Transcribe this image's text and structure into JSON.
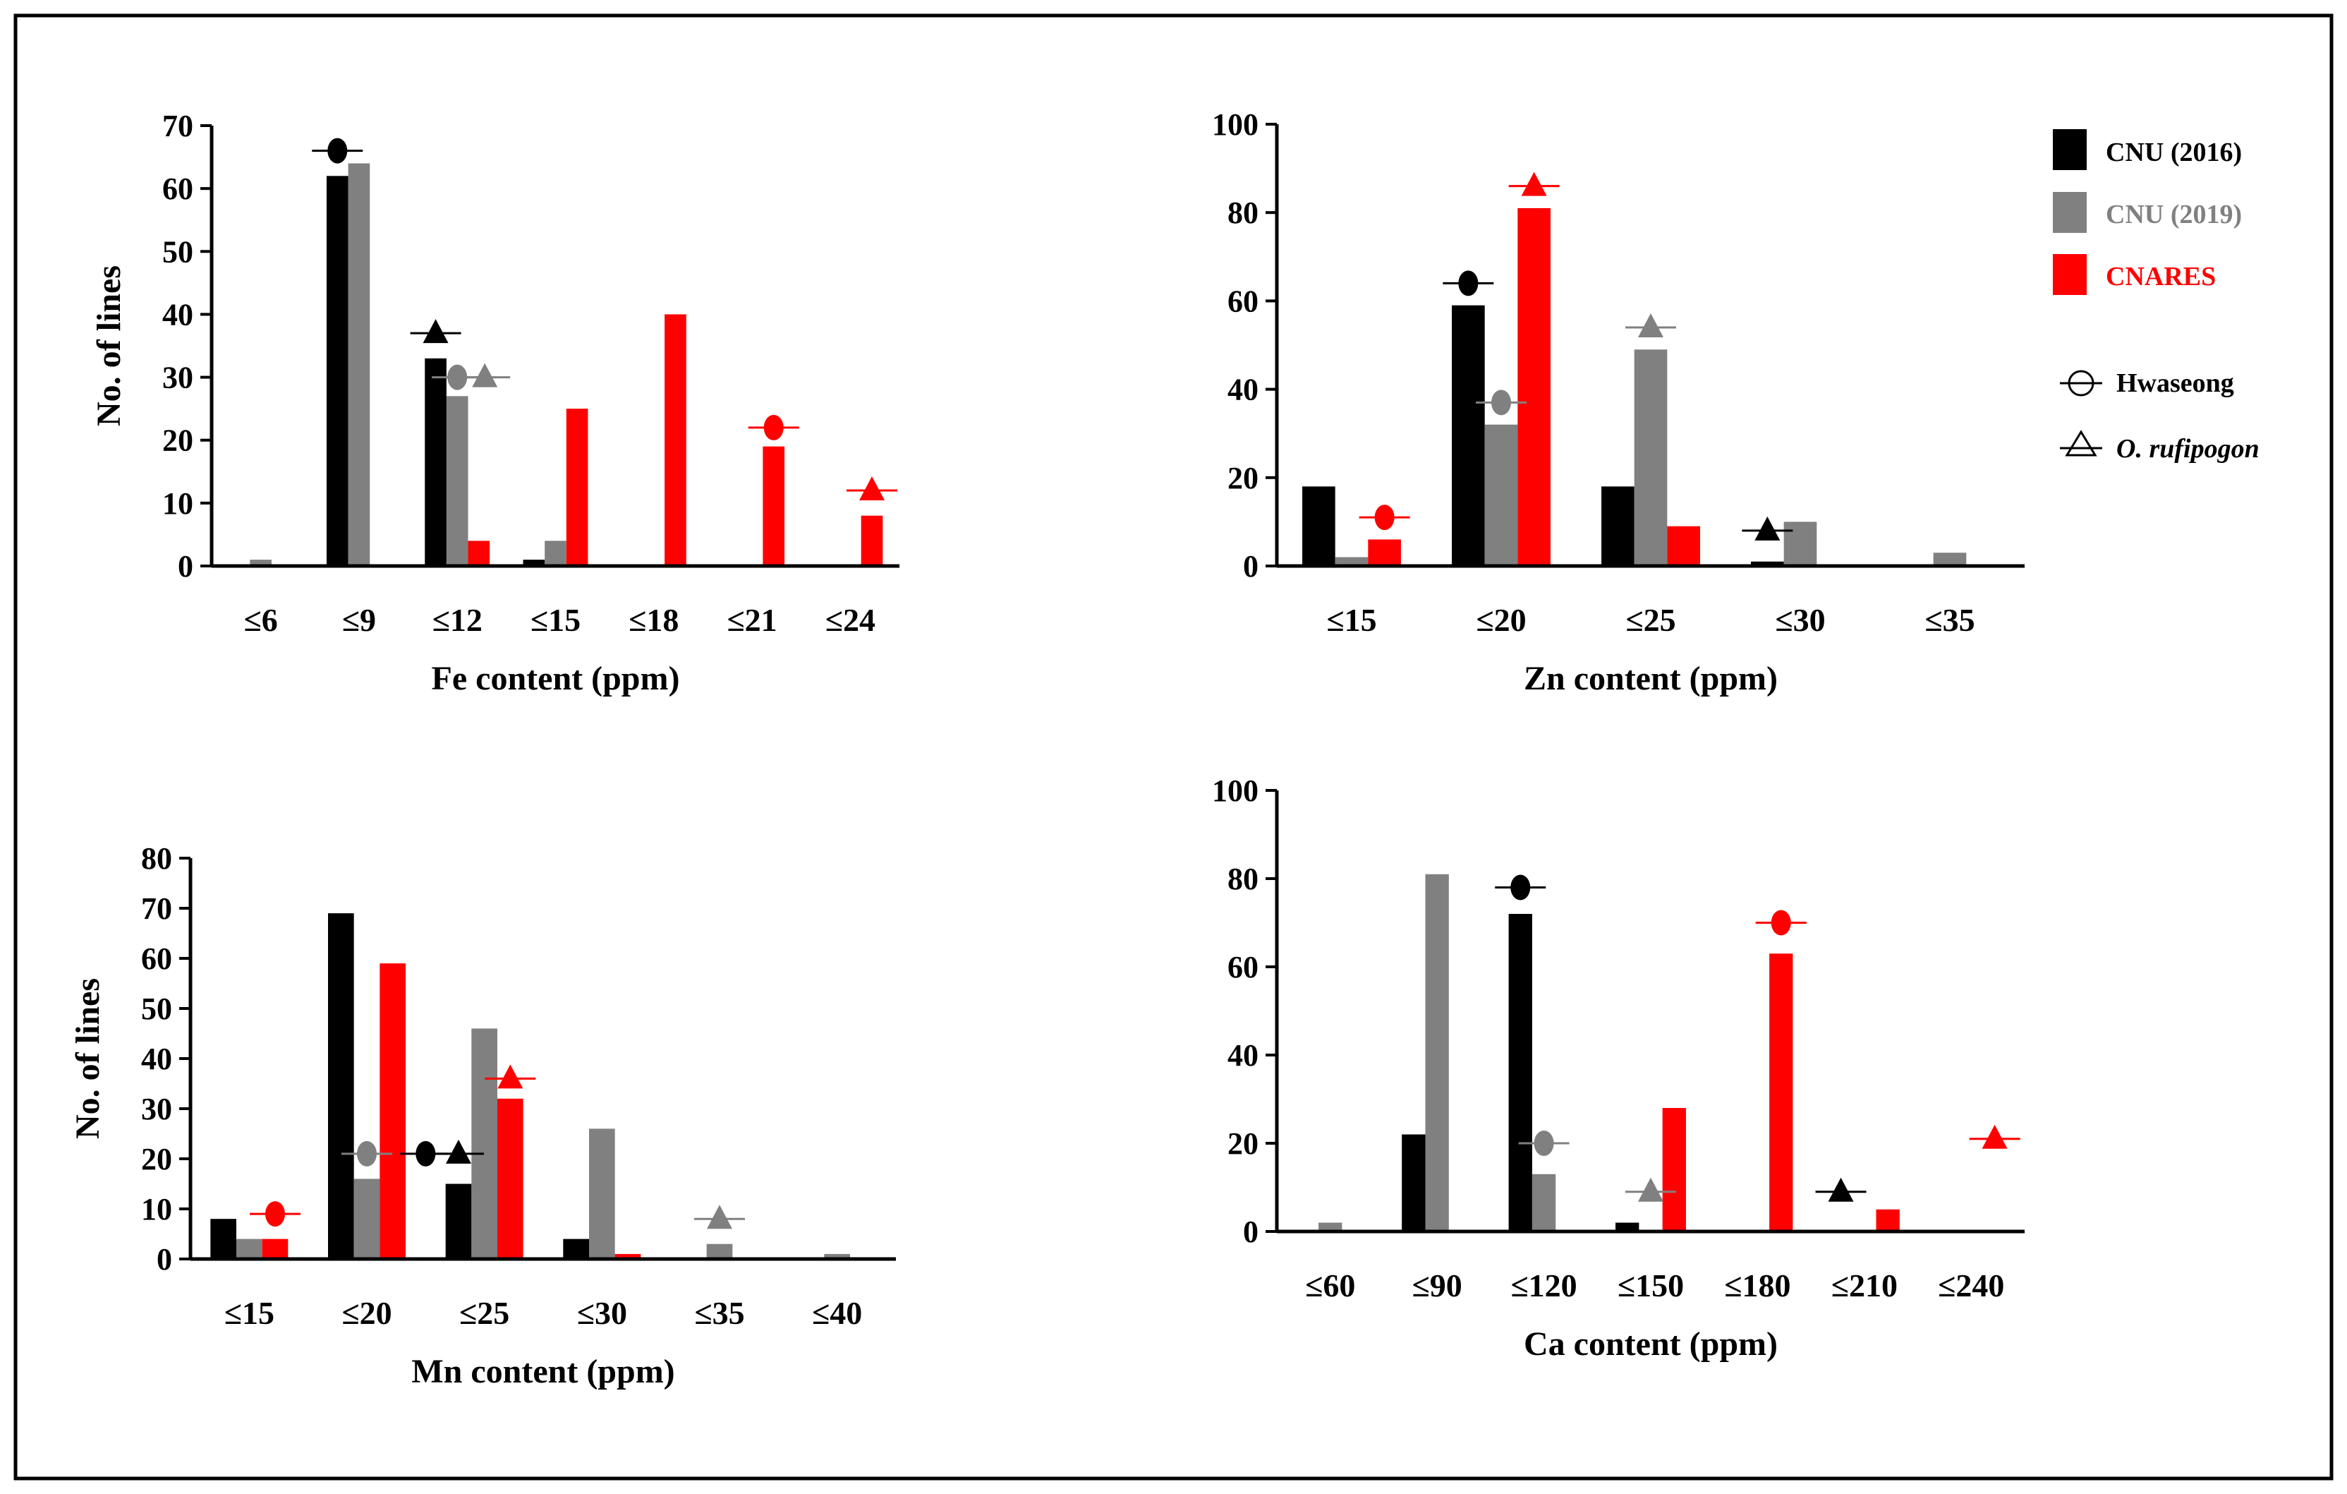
{
  "legend": {
    "series": [
      {
        "label": "CNU (2016)",
        "color": "#000000"
      },
      {
        "label": "CNU (2019)",
        "color": "#808080"
      },
      {
        "label": "CNARES",
        "color": "#ff0000"
      }
    ],
    "markers": [
      {
        "label": "Hwaseong",
        "shape": "circle"
      },
      {
        "label": "O. rufipogon",
        "shape": "triangle"
      }
    ]
  },
  "colors": {
    "CNU (2016)": "#000000",
    "CNU (2019)": "#808080",
    "CNARES": "#ff0000",
    "tick": "#1f77b4"
  },
  "chart_data": [
    {
      "id": "fe",
      "type": "bar",
      "title": "",
      "xlabel": "Fe content (ppm)",
      "ylabel": "No. of lines",
      "ylim": [
        0,
        70
      ],
      "yticks": [
        0,
        10,
        20,
        30,
        40,
        50,
        60,
        70
      ],
      "categories": [
        "≤6",
        "≤9",
        "≤12",
        "≤15",
        "≤18",
        "≤21",
        "≤24"
      ],
      "series": [
        {
          "name": "CNU (2016)",
          "values": [
            0,
            62,
            33,
            1,
            0,
            0,
            0
          ]
        },
        {
          "name": "CNU (2019)",
          "values": [
            1,
            64,
            27,
            4,
            0,
            0,
            0
          ]
        },
        {
          "name": "CNARES",
          "values": [
            0,
            0,
            4,
            25,
            40,
            19,
            8
          ]
        }
      ],
      "annotations": [
        {
          "shape": "circle",
          "series": "CNU (2016)",
          "category": "≤9",
          "value": 66
        },
        {
          "shape": "triangle",
          "series": "CNU (2016)",
          "category": "≤12",
          "value": 37
        },
        {
          "shape": "circle",
          "series": "CNU (2019)",
          "category": "≤12",
          "value": 30
        },
        {
          "shape": "triangle",
          "series": "CNU (2019)",
          "category": "≤12",
          "value": 30,
          "offset": 1
        },
        {
          "shape": "circle",
          "series": "CNARES",
          "category": "≤21",
          "value": 22
        },
        {
          "shape": "triangle",
          "series": "CNARES",
          "category": "≤24",
          "value": 12
        }
      ]
    },
    {
      "id": "zn",
      "type": "bar",
      "title": "",
      "xlabel": "Zn content (ppm)",
      "ylabel": "",
      "ylim": [
        0,
        100
      ],
      "yticks": [
        0,
        20,
        40,
        60,
        80,
        100
      ],
      "categories": [
        "≤15",
        "≤20",
        "≤25",
        "≤30",
        "≤35"
      ],
      "series": [
        {
          "name": "CNU (2016)",
          "values": [
            18,
            59,
            18,
            1,
            0
          ]
        },
        {
          "name": "CNU (2019)",
          "values": [
            2,
            32,
            49,
            10,
            3
          ]
        },
        {
          "name": "CNARES",
          "values": [
            6,
            81,
            9,
            0,
            0
          ]
        }
      ],
      "annotations": [
        {
          "shape": "circle",
          "series": "CNARES",
          "category": "≤15",
          "value": 11
        },
        {
          "shape": "circle",
          "series": "CNU (2016)",
          "category": "≤20",
          "value": 64
        },
        {
          "shape": "circle",
          "series": "CNU (2019)",
          "category": "≤20",
          "value": 37
        },
        {
          "shape": "triangle",
          "series": "CNARES",
          "category": "≤20",
          "value": 86
        },
        {
          "shape": "triangle",
          "series": "CNU (2019)",
          "category": "≤25",
          "value": 54
        },
        {
          "shape": "triangle",
          "series": "CNU (2016)",
          "category": "≤30",
          "value": 8
        }
      ]
    },
    {
      "id": "mn",
      "type": "bar",
      "title": "",
      "xlabel": "Mn content (ppm)",
      "ylabel": "No. of lines",
      "ylim": [
        0,
        80
      ],
      "yticks": [
        0,
        10,
        20,
        30,
        40,
        50,
        60,
        70,
        80
      ],
      "categories": [
        "≤15",
        "≤20",
        "≤25",
        "≤30",
        "≤35",
        "≤40"
      ],
      "series": [
        {
          "name": "CNU (2016)",
          "values": [
            8,
            69,
            15,
            4,
            0,
            0
          ]
        },
        {
          "name": "CNU (2019)",
          "values": [
            4,
            16,
            46,
            26,
            3,
            1
          ]
        },
        {
          "name": "CNARES",
          "values": [
            4,
            59,
            32,
            1,
            0,
            0
          ]
        }
      ],
      "annotations": [
        {
          "shape": "circle",
          "series": "CNARES",
          "category": "≤15",
          "value": 9
        },
        {
          "shape": "circle",
          "series": "CNU (2019)",
          "category": "≤20",
          "value": 21
        },
        {
          "shape": "circle",
          "series": "CNU (2016)",
          "category": "≤25",
          "value": 21,
          "offset": -1
        },
        {
          "shape": "triangle",
          "series": "CNU (2016)",
          "category": "≤25",
          "value": 21
        },
        {
          "shape": "triangle",
          "series": "CNARES",
          "category": "≤25",
          "value": 36
        },
        {
          "shape": "triangle",
          "series": "CNU (2019)",
          "category": "≤35",
          "value": 8
        }
      ]
    },
    {
      "id": "ca",
      "type": "bar",
      "title": "",
      "xlabel": "Ca content (ppm)",
      "ylabel": "",
      "ylim": [
        0,
        100
      ],
      "yticks": [
        0,
        20,
        40,
        60,
        80,
        100
      ],
      "categories": [
        "≤60",
        "≤90",
        "≤120",
        "≤150",
        "≤180",
        "≤210",
        "≤240"
      ],
      "series": [
        {
          "name": "CNU (2016)",
          "values": [
            0,
            22,
            72,
            2,
            0,
            0,
            0
          ]
        },
        {
          "name": "CNU (2019)",
          "values": [
            2,
            81,
            13,
            0,
            0,
            0,
            0
          ]
        },
        {
          "name": "CNARES",
          "values": [
            0,
            0,
            0,
            28,
            63,
            5,
            0
          ]
        }
      ],
      "annotations": [
        {
          "shape": "circle",
          "series": "CNU (2016)",
          "category": "≤120",
          "value": 78
        },
        {
          "shape": "circle",
          "series": "CNU (2019)",
          "category": "≤120",
          "value": 20
        },
        {
          "shape": "triangle",
          "series": "CNU (2019)",
          "category": "≤150",
          "value": 9
        },
        {
          "shape": "circle",
          "series": "CNARES",
          "category": "≤180",
          "value": 70
        },
        {
          "shape": "triangle",
          "series": "CNU (2016)",
          "category": "≤210",
          "value": 9
        },
        {
          "shape": "triangle",
          "series": "CNARES",
          "category": "≤240",
          "value": 21
        }
      ]
    }
  ]
}
